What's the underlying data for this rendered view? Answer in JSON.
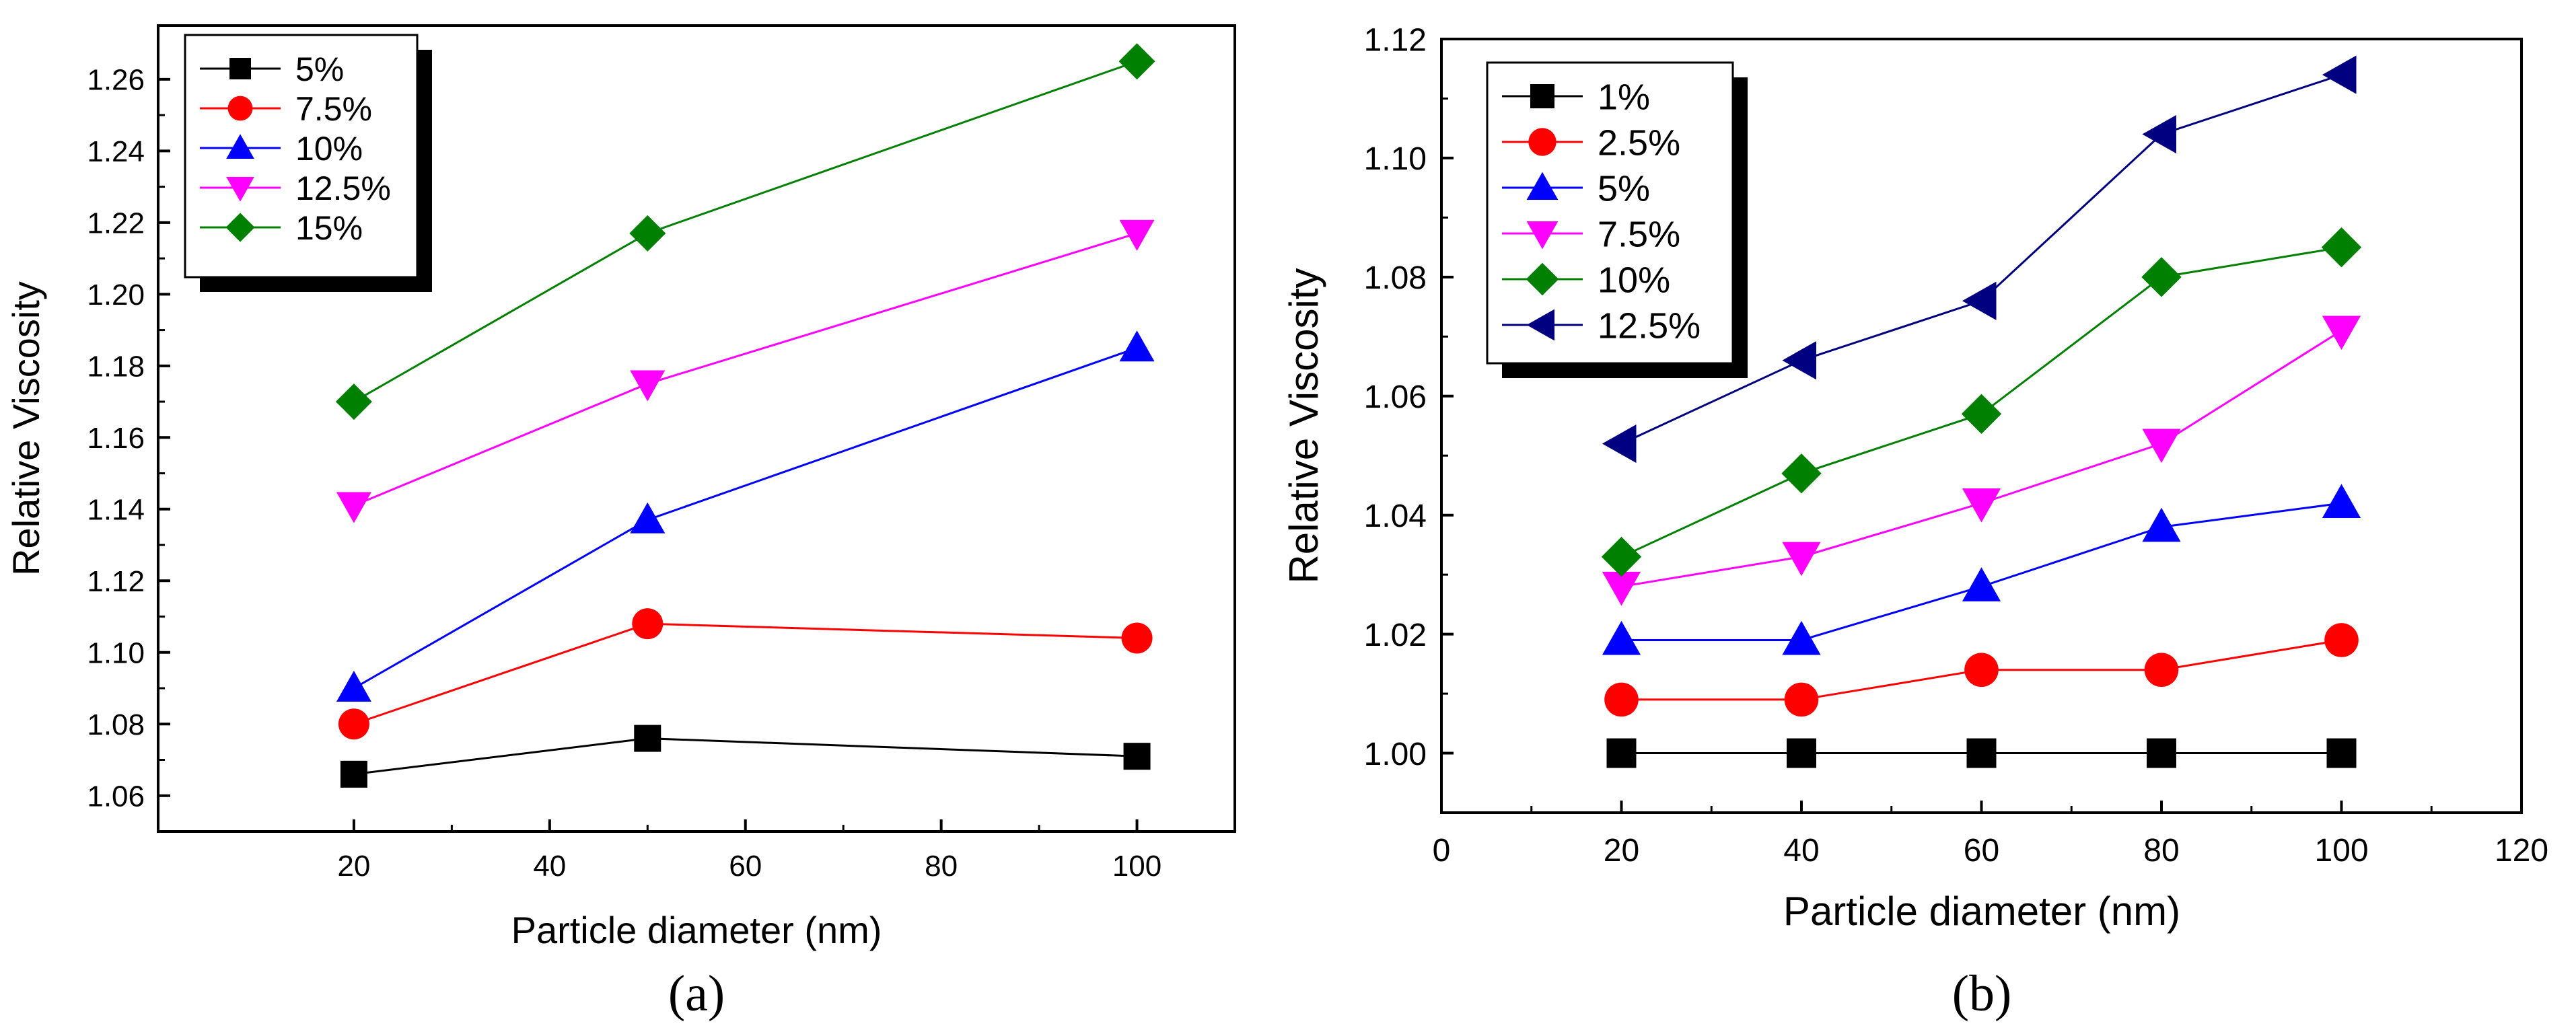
{
  "chart_data": [
    {
      "type": "line",
      "caption": "(a)",
      "xlabel": "Particle diameter (nm)",
      "ylabel": "Relative Viscosity",
      "xlim": [
        0,
        110
      ],
      "ylim": [
        1.05,
        1.275
      ],
      "xticks": [
        20,
        40,
        60,
        80,
        100
      ],
      "xtick_labels": [
        "20",
        "40",
        "60",
        "80",
        "100"
      ],
      "yticks": [
        1.06,
        1.08,
        1.1,
        1.12,
        1.14,
        1.16,
        1.18,
        1.2,
        1.22,
        1.24,
        1.26
      ],
      "ytick_labels": [
        "1.06",
        "1.08",
        "1.10",
        "1.12",
        "1.14",
        "1.16",
        "1.18",
        "1.20",
        "1.22",
        "1.24",
        "1.26"
      ],
      "legend_position": "top-left",
      "x": [
        20,
        50,
        100
      ],
      "series": [
        {
          "name": "5%",
          "values": [
            1.066,
            1.076,
            1.071
          ],
          "color": "#000000",
          "marker": "square"
        },
        {
          "name": "7.5%",
          "values": [
            1.08,
            1.108,
            1.104
          ],
          "color": "#ff0000",
          "marker": "circle"
        },
        {
          "name": "10%",
          "values": [
            1.09,
            1.137,
            1.185
          ],
          "color": "#0000ff",
          "marker": "triangle-up"
        },
        {
          "name": "12.5%",
          "values": [
            1.141,
            1.175,
            1.217
          ],
          "color": "#ff00ff",
          "marker": "triangle-down"
        },
        {
          "name": "15%",
          "values": [
            1.17,
            1.217,
            1.265
          ],
          "color": "#008000",
          "marker": "diamond"
        }
      ]
    },
    {
      "type": "line",
      "caption": "(b)",
      "xlabel": "Particle diameter (nm)",
      "ylabel": "Relative Viscosity",
      "xlim": [
        0,
        120
      ],
      "ylim": [
        0.99,
        1.12
      ],
      "xticks": [
        0,
        20,
        40,
        60,
        80,
        100,
        120
      ],
      "xtick_labels": [
        "0",
        "20",
        "40",
        "60",
        "80",
        "100",
        "120"
      ],
      "yticks": [
        1.0,
        1.02,
        1.04,
        1.06,
        1.08,
        1.1,
        1.12
      ],
      "ytick_labels": [
        "1.00",
        "1.02",
        "1.04",
        "1.06",
        "1.08",
        "1.10",
        "1.12"
      ],
      "legend_position": "top-left",
      "x": [
        20,
        40,
        60,
        80,
        100
      ],
      "series": [
        {
          "name": "1%",
          "values": [
            1.0,
            1.0,
            1.0,
            1.0,
            1.0
          ],
          "color": "#000000",
          "marker": "square"
        },
        {
          "name": "2.5%",
          "values": [
            1.009,
            1.009,
            1.014,
            1.014,
            1.019
          ],
          "color": "#ff0000",
          "marker": "circle"
        },
        {
          "name": "5%",
          "values": [
            1.019,
            1.019,
            1.028,
            1.038,
            1.042
          ],
          "color": "#0000ff",
          "marker": "triangle-up"
        },
        {
          "name": "7.5%",
          "values": [
            1.028,
            1.033,
            1.042,
            1.052,
            1.071
          ],
          "color": "#ff00ff",
          "marker": "triangle-down"
        },
        {
          "name": "10%",
          "values": [
            1.033,
            1.047,
            1.057,
            1.08,
            1.085
          ],
          "color": "#008000",
          "marker": "diamond"
        },
        {
          "name": "12.5%",
          "values": [
            1.052,
            1.066,
            1.076,
            1.104,
            1.114
          ],
          "color": "#000080",
          "marker": "triangle-left"
        }
      ]
    }
  ]
}
